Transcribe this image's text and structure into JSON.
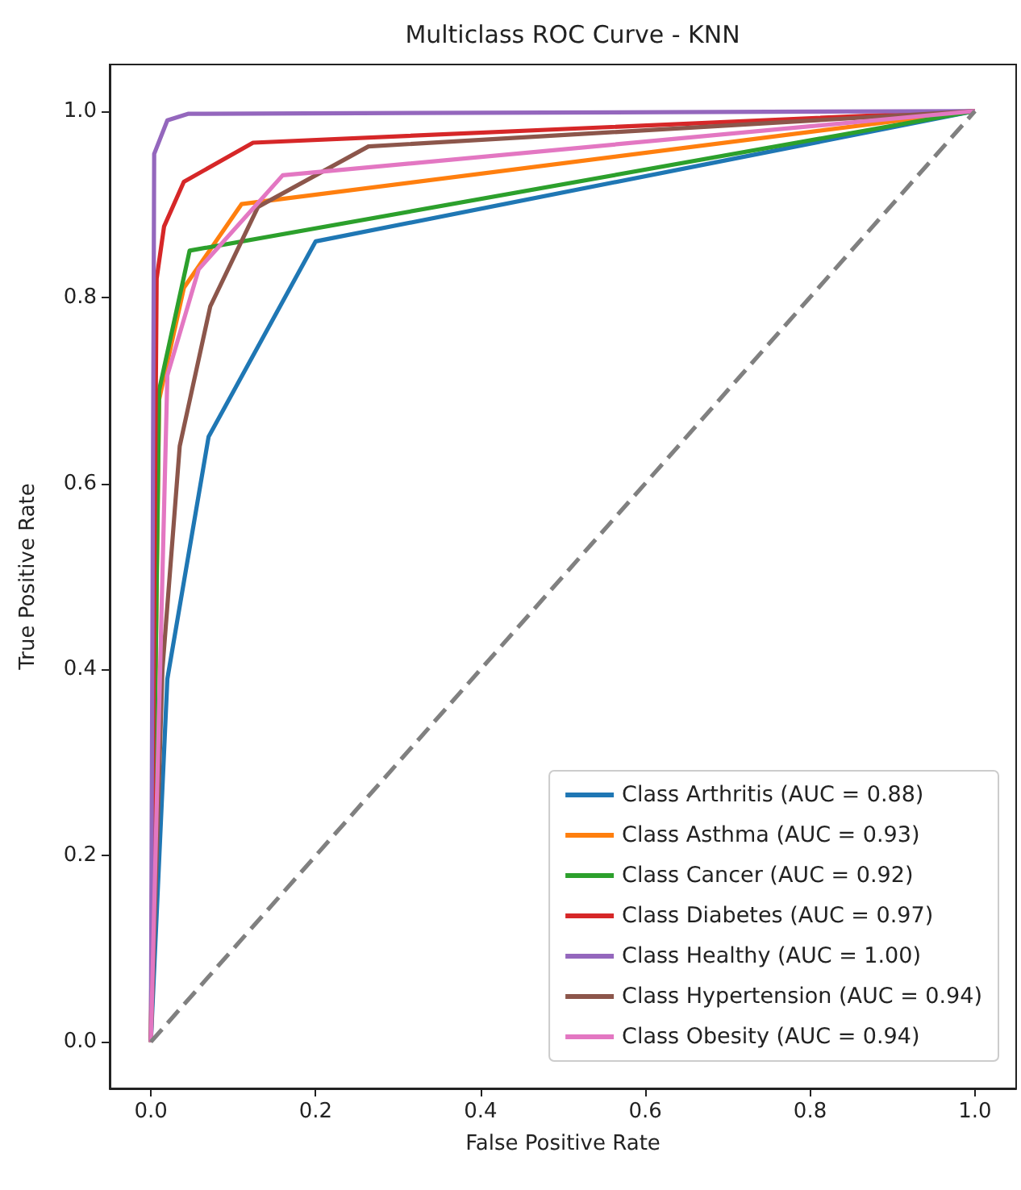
{
  "chart_data": {
    "type": "line",
    "title": "Multiclass ROC Curve - KNN",
    "xlabel": "False Positive Rate",
    "ylabel": "True Positive Rate",
    "series": [
      {
        "name": "Class Arthritis (AUC = 0.88)",
        "color": "#1f77b4",
        "x": [
          0,
          0.02,
          0.07,
          0.2,
          1
        ],
        "values": [
          0,
          0.39,
          0.65,
          0.86,
          1
        ]
      },
      {
        "name": "Class Asthma (AUC = 0.93)",
        "color": "#ff7f0e",
        "x": [
          0,
          0.01,
          0.04,
          0.11,
          1
        ],
        "values": [
          0,
          0.69,
          0.81,
          0.9,
          1
        ]
      },
      {
        "name": "Class Cancer (AUC = 0.92)",
        "color": "#2ca02c",
        "x": [
          0,
          0.01,
          0.047,
          1
        ],
        "values": [
          0,
          0.7,
          0.85,
          1
        ]
      },
      {
        "name": "Class Diabetes (AUC = 0.97)",
        "color": "#d62728",
        "x": [
          0,
          0.007,
          0.016,
          0.04,
          0.124,
          1
        ],
        "values": [
          0,
          0.82,
          0.876,
          0.924,
          0.966,
          1
        ]
      },
      {
        "name": "Class Healthy (AUC = 1.00)",
        "color": "#9467bd",
        "x": [
          0,
          0.004,
          0.02,
          0.045,
          1
        ],
        "values": [
          0,
          0.954,
          0.99,
          0.997,
          1
        ]
      },
      {
        "name": "Class Hypertension (AUC = 0.94)",
        "color": "#8c564b",
        "x": [
          0,
          0.014,
          0.035,
          0.072,
          0.13,
          0.264,
          1
        ],
        "values": [
          0,
          0.4,
          0.64,
          0.79,
          0.897,
          0.962,
          1
        ]
      },
      {
        "name": "Class Obesity (AUC = 0.94)",
        "color": "#e377c2",
        "x": [
          0,
          0.02,
          0.058,
          0.16,
          1
        ],
        "values": [
          0,
          0.716,
          0.83,
          0.931,
          1
        ]
      },
      {
        "color": "#808080",
        "line_style": "dashed",
        "x": [
          0,
          1
        ],
        "values": [
          0,
          1
        ]
      }
    ],
    "xlim": [
      -0.05,
      1.05
    ],
    "ylim": [
      -0.05,
      1.05
    ],
    "xticks": [
      {
        "value": 0,
        "label": "0.0"
      },
      0.2,
      0.4,
      0.6,
      0.8,
      {
        "value": 1,
        "label": "1.0"
      }
    ],
    "yticks": [
      {
        "value": 0,
        "label": "0.0"
      },
      0.2,
      0.4,
      0.6,
      0.8,
      {
        "value": 1,
        "label": "1.0"
      }
    ],
    "grid": false,
    "legend": "bottom right",
    "marker": "none",
    "line_style": "solid"
  }
}
